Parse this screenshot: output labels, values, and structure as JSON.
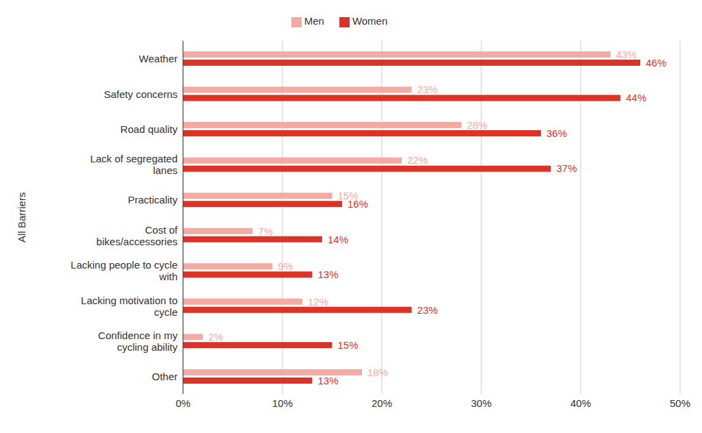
{
  "chart_data": {
    "type": "bar",
    "orientation": "horizontal",
    "y_label": "All Barriers",
    "categories": [
      "Weather",
      "Safety concerns",
      "Road quality",
      "Lack of segregated lanes",
      "Practicality",
      "Cost of bikes/accessories",
      "Lacking people to cycle with",
      "Lacking motivation to cycle",
      "Confidence in my cycling ability",
      "Other"
    ],
    "series": [
      {
        "name": "Men",
        "color": "#f2aaa3",
        "values": [
          43,
          23,
          28,
          22,
          15,
          7,
          9,
          12,
          2,
          18
        ],
        "value_labels": [
          "43%",
          "23%",
          "28%",
          "22%",
          "15%",
          "7%",
          "9%",
          "12%",
          "2%",
          "18%"
        ]
      },
      {
        "name": "Women",
        "color": "#dc3328",
        "values": [
          46,
          44,
          36,
          37,
          16,
          14,
          13,
          23,
          15,
          13
        ],
        "value_labels": [
          "46%",
          "44%",
          "36%",
          "37%",
          "16%",
          "14%",
          "13%",
          "23%",
          "15%",
          "13%"
        ]
      }
    ],
    "xlim": [
      0,
      50
    ],
    "xticks": [
      {
        "value": 0,
        "label": "0%"
      },
      {
        "value": 10,
        "label": "10%"
      },
      {
        "value": 20,
        "label": "20%"
      },
      {
        "value": 30,
        "label": "30%"
      },
      {
        "value": 40,
        "label": "40%"
      },
      {
        "value": 50,
        "label": "50%"
      }
    ],
    "grid": true,
    "legend": "top",
    "data_labels": true
  }
}
